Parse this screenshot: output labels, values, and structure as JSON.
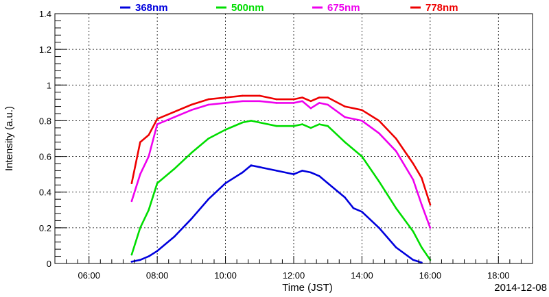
{
  "chart_data": {
    "type": "line",
    "xlabel": "Time (JST)",
    "ylabel": "Intensity (a.u.)",
    "date_label": "2014-12-08",
    "xlim": [
      "05:00",
      "19:00"
    ],
    "ylim": [
      0,
      1.4
    ],
    "x_ticks": [
      "06:00",
      "08:00",
      "10:00",
      "12:00",
      "14:00",
      "16:00",
      "18:00"
    ],
    "y_ticks": [
      "0",
      "0.2",
      "0.4",
      "0.6",
      "0.8",
      "1",
      "1.2",
      "1.4"
    ],
    "y_tick_values": [
      0,
      0.2,
      0.4,
      0.6,
      0.8,
      1.0,
      1.2,
      1.4
    ],
    "grid": true,
    "legend_placement": "top",
    "series": [
      {
        "name": "368nm",
        "color": "#0000dd",
        "x": [
          "07:15",
          "07:30",
          "07:45",
          "08:00",
          "08:30",
          "09:00",
          "09:30",
          "10:00",
          "10:30",
          "10:45",
          "11:00",
          "11:30",
          "12:00",
          "12:15",
          "12:30",
          "12:45",
          "13:00",
          "13:30",
          "13:45",
          "14:00",
          "14:30",
          "15:00",
          "15:30",
          "15:45"
        ],
        "y": [
          0.01,
          0.02,
          0.04,
          0.07,
          0.15,
          0.25,
          0.36,
          0.45,
          0.51,
          0.55,
          0.54,
          0.52,
          0.5,
          0.52,
          0.51,
          0.49,
          0.45,
          0.37,
          0.31,
          0.29,
          0.2,
          0.09,
          0.02,
          0.005
        ]
      },
      {
        "name": "500nm",
        "color": "#00dd00",
        "x": [
          "07:15",
          "07:30",
          "07:45",
          "08:00",
          "08:30",
          "09:00",
          "09:30",
          "10:00",
          "10:30",
          "10:45",
          "11:00",
          "11:30",
          "12:00",
          "12:15",
          "12:30",
          "12:45",
          "13:00",
          "13:30",
          "14:00",
          "14:30",
          "15:00",
          "15:30",
          "15:45",
          "16:00"
        ],
        "y": [
          0.05,
          0.2,
          0.3,
          0.45,
          0.53,
          0.62,
          0.7,
          0.75,
          0.79,
          0.8,
          0.79,
          0.77,
          0.77,
          0.78,
          0.76,
          0.78,
          0.77,
          0.68,
          0.6,
          0.46,
          0.31,
          0.18,
          0.09,
          0.02
        ]
      },
      {
        "name": "675nm",
        "color": "#ee00ee",
        "x": [
          "07:15",
          "07:30",
          "07:45",
          "08:00",
          "08:30",
          "09:00",
          "09:30",
          "10:00",
          "10:30",
          "11:00",
          "11:30",
          "12:00",
          "12:15",
          "12:30",
          "12:45",
          "13:00",
          "13:30",
          "14:00",
          "14:30",
          "15:00",
          "15:30",
          "15:45",
          "16:00"
        ],
        "y": [
          0.35,
          0.5,
          0.6,
          0.78,
          0.82,
          0.86,
          0.89,
          0.9,
          0.91,
          0.91,
          0.9,
          0.9,
          0.91,
          0.87,
          0.9,
          0.89,
          0.82,
          0.8,
          0.73,
          0.63,
          0.47,
          0.33,
          0.2
        ]
      },
      {
        "name": "778nm",
        "color": "#ee0000",
        "x": [
          "07:15",
          "07:30",
          "07:45",
          "08:00",
          "08:30",
          "09:00",
          "09:30",
          "10:00",
          "10:30",
          "11:00",
          "11:30",
          "12:00",
          "12:15",
          "12:30",
          "12:45",
          "13:00",
          "13:30",
          "14:00",
          "14:30",
          "15:00",
          "15:30",
          "15:45",
          "16:00"
        ],
        "y": [
          0.45,
          0.68,
          0.72,
          0.81,
          0.85,
          0.89,
          0.92,
          0.93,
          0.94,
          0.94,
          0.92,
          0.92,
          0.93,
          0.91,
          0.93,
          0.93,
          0.88,
          0.86,
          0.8,
          0.7,
          0.56,
          0.48,
          0.33
        ]
      }
    ]
  }
}
